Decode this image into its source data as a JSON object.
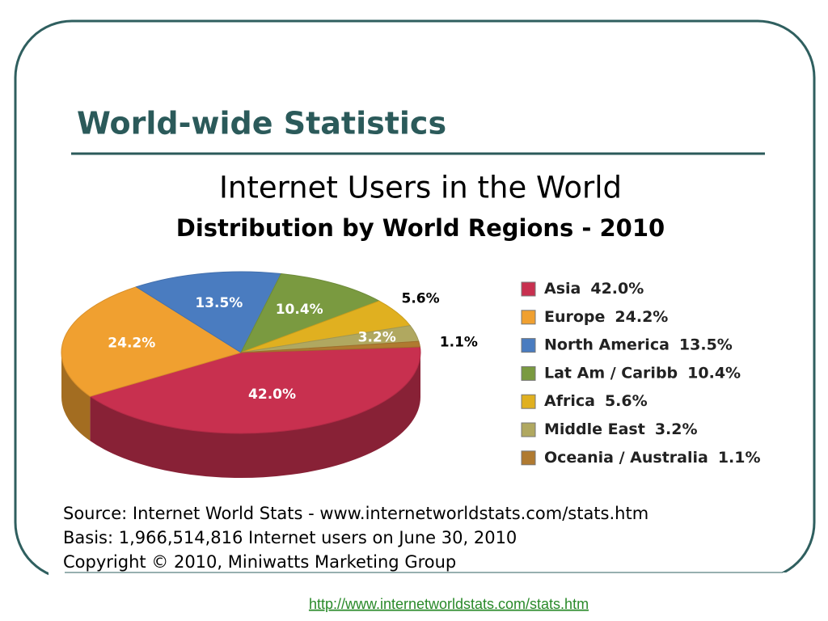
{
  "slide_title": "World-wide Statistics",
  "chart_data": {
    "type": "pie",
    "title": "Internet Users in the World",
    "subtitle": "Distribution by World Regions - 2010",
    "categories": [
      "Asia",
      "Europe",
      "North America",
      "Lat Am / Caribb",
      "Africa",
      "Middle East",
      "Oceania / Australia"
    ],
    "values": [
      42.0,
      24.2,
      13.5,
      10.4,
      5.6,
      3.2,
      1.1
    ],
    "value_labels": [
      "42.0%",
      "24.2%",
      "13.5%",
      "10.4%",
      "5.6%",
      "3.2%",
      "1.1%"
    ],
    "colors": [
      "#c8304f",
      "#f0a030",
      "#4a7cc0",
      "#7a9a40",
      "#e0b020",
      "#b0a860",
      "#b07a30"
    ],
    "legend": "right"
  },
  "source_lines": [
    "Source: Internet World Stats -  www.internetworldstats.com/stats.htm",
    "Basis: 1,966,514,816 Internet users on June 30, 2010",
    "Copyright © 2010, Miniwatts Marketing Group"
  ],
  "link": "http://www.internetworldstats.com/stats.htm"
}
